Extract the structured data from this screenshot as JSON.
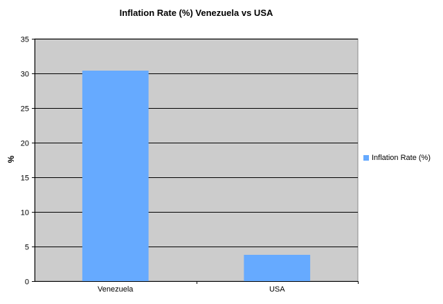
{
  "chart_data": {
    "type": "bar",
    "title": "Inflation Rate (%) Venezuela vs USA",
    "xlabel": "",
    "ylabel": "%",
    "categories": [
      "Venezuela",
      "USA"
    ],
    "series": [
      {
        "name": "Inflation Rate (%)",
        "values": [
          30.4,
          3.8
        ],
        "color": "#66aaff"
      }
    ],
    "ylim": [
      0,
      35
    ],
    "yticks": [
      0,
      5,
      10,
      15,
      20,
      25,
      30,
      35
    ],
    "grid": true,
    "legend_position": "right",
    "plot_background": "#cccccc"
  }
}
